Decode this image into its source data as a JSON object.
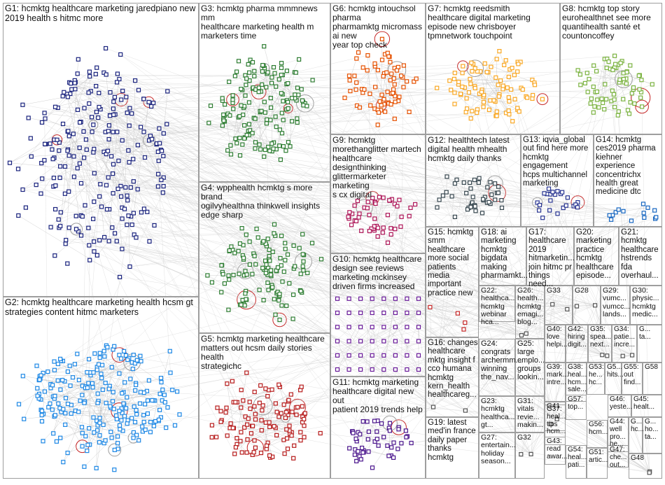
{
  "diagram": {
    "type": "network-graph-clusters",
    "groups": [
      {
        "id": "G1",
        "label": "G1: hcmktg healthcare marketing jaredpiano new\n2019 health s hitmc more",
        "color": "#1a237e"
      },
      {
        "id": "G2",
        "label": "G2: hcmktg healthcare marketing health hcsm gt\nstrategies content hitmc marketers",
        "color": "#1e88e5"
      },
      {
        "id": "G3",
        "label": "G3: hcmktg pharma mmmnews mm\nhealthcare marketing health m\nmarketers time",
        "color": "#2e7d32"
      },
      {
        "id": "G4",
        "label": "G4: wpphealth hcmktg s more brand\nogilvyhealthna thinkwell insights\nedge sharp",
        "color": "#2e7d32"
      },
      {
        "id": "G5",
        "label": "G5: hcmktg marketing healthcare\nmatters out hcsm daily stories health\nstrategichc",
        "color": "#b71c1c"
      },
      {
        "id": "G6",
        "label": "G6: hcmktg intouchsol pharma\npharmamktg micromass ai new\nyear top check",
        "color": "#e65100"
      },
      {
        "id": "G7",
        "label": "G7: hcmktg reedsmith\nhealthcare digital marketing\nepisode new chrisboyer\ntpmnetwork touchpoint",
        "color": "#f9a825"
      },
      {
        "id": "G8",
        "label": "G8: hcmktg top story\neurohealthnet see more\nquantihealth santé et\ncountoncoffey",
        "color": "#7cb342"
      },
      {
        "id": "G9",
        "label": "G9: hcmktg\nmorethanglitter martech\nhealthcare designthinking\nglittermarketer marketing\ns cx digital",
        "color": "#ad1457"
      },
      {
        "id": "G10",
        "label": "G10: hcmktg healthcare\ndesign see reviews\nmarketing mckinsey\ndriven firms increased",
        "color": "#6a1b9a"
      },
      {
        "id": "G11",
        "label": "G11: hcmktg marketing\nhealthcare digital new out\npatient 2019 trends help",
        "color": "#4a148c"
      },
      {
        "id": "G12",
        "label": "G12: healthtech latest\ndigital health mhealth\nhcmktg daily thanks",
        "color": "#37474f"
      },
      {
        "id": "G13",
        "label": "G13: iqvia_global\nout find here more\nhcmktg engagement\nhcps multichannel\nmarketing",
        "color": "#283593"
      },
      {
        "id": "G14",
        "label": "G14: hcmktg\nces2019 pharma\nkiehner\nexperience\nconcentrichx\nhealth great\nmedicine dtc",
        "color": "#1565c0"
      },
      {
        "id": "G15",
        "label": "G15: hcmktg\nsmm\nhealthcare\nmore social\npatients\nmedia\nimportant\npractice new",
        "color": "#c62828"
      },
      {
        "id": "G16",
        "label": "G16: changes\nhealthcare\nmktg insight f\ncco humana\nhcmktg\nkern_health\nhealthcareg...",
        "color": "#555555"
      },
      {
        "id": "G17",
        "label": "G17:\nhealthcare\n2019\nhitmarketin...\njoin hitmc pr\nthings need...",
        "color": "#555555"
      },
      {
        "id": "G18",
        "label": "G18: ai\nmarketing\nhcmktg\nbigdata\nmaking\npharmamkt...",
        "color": "#555555"
      },
      {
        "id": "G19",
        "label": "G19: latest\nmed'in france\ndaily paper\nthanks\nhcmktg",
        "color": "#555555"
      },
      {
        "id": "G20",
        "label": "G20:\nmarketing\npractice\nhcmktg\nhealthcare\nepisode...",
        "color": "#555555"
      },
      {
        "id": "G21",
        "label": "G21:\nhcmktg\nhealthcare\nhstrends\nfda\noverhaul...",
        "color": "#555555"
      },
      {
        "id": "G22",
        "label": "G22:\nhealthca...\nhcmktg\nwebinar\nhca...",
        "color": "#555555"
      },
      {
        "id": "G23",
        "label": "G23:\nhcmktg\nhealthca...\ngt...",
        "color": "#555555"
      },
      {
        "id": "G24",
        "label": "G24:\ncongrats\narchermm...\nwinning\nthe_nav...",
        "color": "#555555"
      },
      {
        "id": "G25",
        "label": "G25:\nlarge\nemplo...\ngroups\nlookin...",
        "color": "#555555"
      },
      {
        "id": "G26",
        "label": "G26:\nhealth...\nhcmktg\nemagi...\nblog...",
        "color": "#555555"
      },
      {
        "id": "G27",
        "label": "G27:\nentertain...\nholiday\nseason...",
        "color": "#555555"
      },
      {
        "id": "G28",
        "label": "G28",
        "color": "#555555"
      },
      {
        "id": "G29",
        "label": "G29:\nvumc...\nvumcc...\nlands...",
        "color": "#555555"
      },
      {
        "id": "G30",
        "label": "G30:\nphysic...\nhcmktg\nmedic...",
        "color": "#555555"
      },
      {
        "id": "G31",
        "label": "G31:\nvitals\nrevie...\nmakin...",
        "color": "#555555"
      },
      {
        "id": "G32",
        "label": "G32",
        "color": "#555555"
      },
      {
        "id": "G33",
        "label": "G33",
        "color": "#555555"
      },
      {
        "id": "G34",
        "label": "G34:\npatie...\nincre...",
        "color": "#555555"
      },
      {
        "id": "G35",
        "label": "G35:\nspea...\nnext...",
        "color": "#555555"
      },
      {
        "id": "G37",
        "label": "G37:\nheal...\ntips\nhcm...",
        "color": "#555555"
      },
      {
        "id": "G38",
        "label": "G38:\nheal...\nhcm...\nsale...",
        "color": "#555555"
      },
      {
        "id": "G39",
        "label": "G39:\nmark...\nintre...",
        "color": "#555555"
      },
      {
        "id": "G40",
        "label": "G40:\nlove\nhelpi...",
        "color": "#555555"
      },
      {
        "id": "G41",
        "label": "G41",
        "color": "#555555"
      },
      {
        "id": "G42",
        "label": "G42:\nhiring\ndigit...",
        "color": "#555555"
      },
      {
        "id": "G43",
        "label": "G43:\nread\nawar...",
        "color": "#555555"
      },
      {
        "id": "G44",
        "label": "G44:\nwell\npro...\nhe...",
        "color": "#555555"
      },
      {
        "id": "G45",
        "label": "G45:\nhealt...",
        "color": "#555555"
      },
      {
        "id": "G46",
        "label": "G46:\nyeste...",
        "color": "#555555"
      },
      {
        "id": "G47",
        "label": "G47:\nche...\nout...",
        "color": "#555555"
      },
      {
        "id": "G48",
        "label": "G48",
        "color": "#555555"
      },
      {
        "id": "G51",
        "label": "G51:\nartic...",
        "color": "#555555"
      },
      {
        "id": "G53",
        "label": "G53:\nhe...\nhc...",
        "color": "#555555"
      },
      {
        "id": "G54",
        "label": "G54:\nheal...\npati...",
        "color": "#555555"
      },
      {
        "id": "G55",
        "label": "G55:\nout\nfind...",
        "color": "#555555"
      },
      {
        "id": "G56",
        "label": "G56:\nhcm...",
        "color": "#555555"
      },
      {
        "id": "G57",
        "label": "G57:\ntop...",
        "color": "#555555"
      },
      {
        "id": "G58",
        "label": "G58",
        "color": "#555555"
      },
      {
        "id": "G59",
        "label": "G...\nhc...",
        "color": "#555555"
      },
      {
        "id": "G60",
        "label": "G...\nho...\nta...",
        "color": "#555555"
      },
      {
        "id": "G61",
        "label": "G5...\nhits...",
        "color": "#555555"
      },
      {
        "id": "G62",
        "label": "G...\nta...",
        "color": "#555555"
      }
    ]
  }
}
